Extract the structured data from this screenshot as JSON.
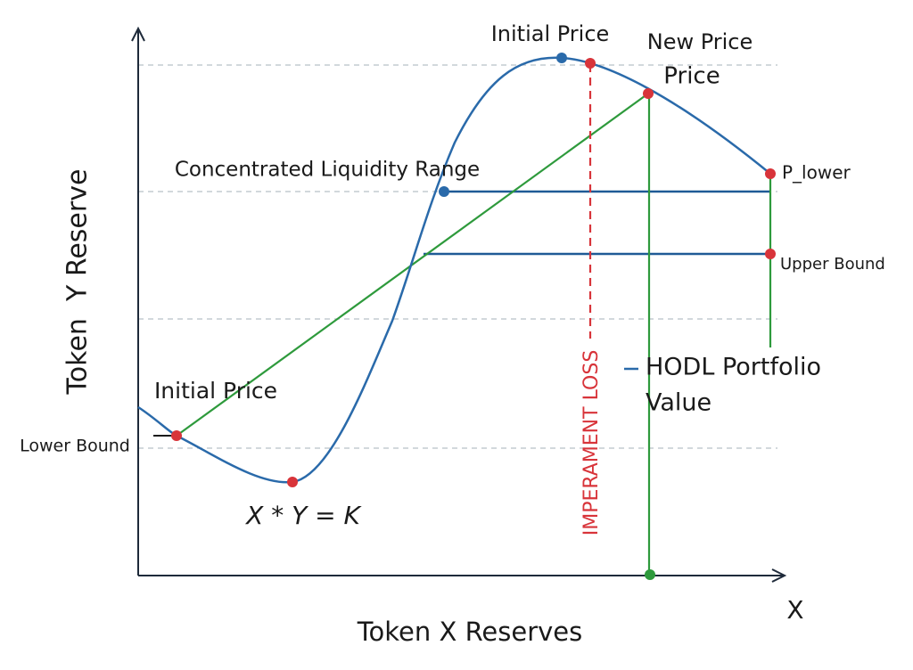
{
  "labels": {
    "initial_price_top": "Initial Price",
    "new_price_line1": "New Price",
    "new_price_line2": "Price",
    "range": "Concentrated Liquidity Range",
    "p_lower": "P_lower",
    "upper_bound": "Upper Bound",
    "impermanent_loss": "IMPERAMENT LOSS",
    "hodl_line1": "HODL Portfolio",
    "hodl_line2": "Value",
    "initial_price_left": "Initial Price",
    "lower_bound": "Lower Bound",
    "formula": "X * Y = K",
    "y_axis": "Token  Y Reserve",
    "x_axis": "Token X Reserves",
    "x_arrow": "X"
  }
}
